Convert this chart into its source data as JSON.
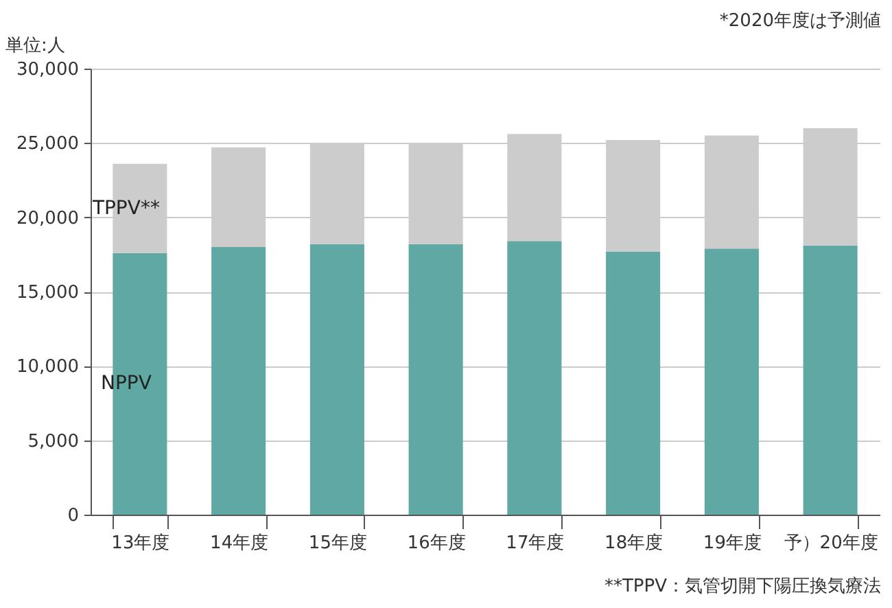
{
  "chart_data": {
    "type": "bar",
    "stacked": true,
    "categories": [
      "13年度",
      "14年度",
      "15年度",
      "16年度",
      "17年度",
      "18年度",
      "19年度",
      "予）20年度"
    ],
    "series": [
      {
        "name": "NPPV",
        "color": "#5fa8a3",
        "values": [
          17600,
          18000,
          18200,
          18200,
          18400,
          17700,
          17900,
          18100
        ]
      },
      {
        "name": "TPPV**",
        "color": "#cccccc",
        "values": [
          6000,
          6700,
          6800,
          6800,
          7200,
          7500,
          7600,
          7900
        ]
      }
    ],
    "ylim": [
      0,
      30000
    ],
    "yticks": [
      0,
      {
        "value": 5000,
        "label": "5,000"
      },
      {
        "value": 10000,
        "label": "10,000"
      },
      {
        "value": 15000,
        "label": "15,000"
      },
      {
        "value": 20000,
        "label": "20,000"
      },
      {
        "value": 25000,
        "label": "25,000"
      },
      {
        "value": 30000,
        "label": "30,000"
      }
    ],
    "grid": "y",
    "legend": false,
    "annotations": [
      "単位:人",
      "*2020年度は予測値",
      "**TPPV：気管切開下陽圧換気療法"
    ]
  }
}
